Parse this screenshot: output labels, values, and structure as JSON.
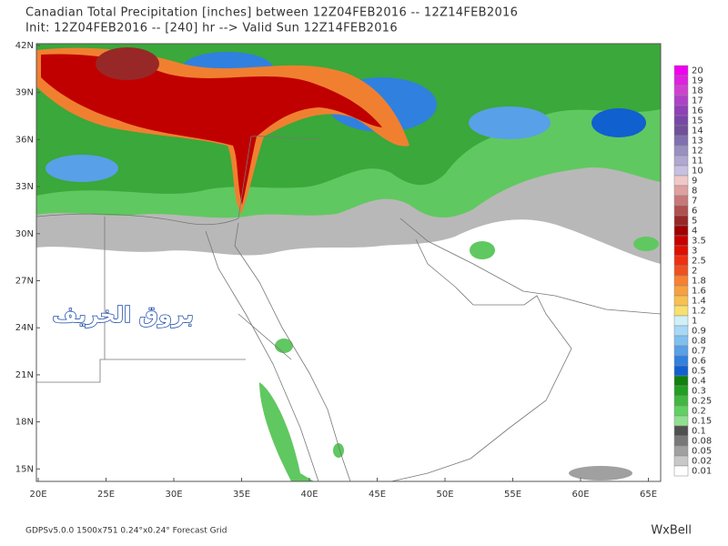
{
  "header": {
    "line1": "Canadian Total Precipitation [inches] between 12Z04FEB2016 -- 12Z14FEB2016",
    "line2": "Init: 12Z04FEB2016 -- [240] hr --> Valid Sun 12Z14FEB2016"
  },
  "map": {
    "lat_labels": [
      "42N",
      "39N",
      "36N",
      "33N",
      "30N",
      "27N",
      "24N",
      "21N",
      "18N",
      "15N"
    ],
    "lon_labels": [
      "20E",
      "25E",
      "30E",
      "35E",
      "40E",
      "45E",
      "50E",
      "55E",
      "60E",
      "65E"
    ],
    "watermark": "بروق الخريف"
  },
  "colorbar": [
    {
      "label": "20",
      "color": "#f000f0"
    },
    {
      "label": "19",
      "color": "#e020e0"
    },
    {
      "label": "18",
      "color": "#d040d0"
    },
    {
      "label": "17",
      "color": "#b040c8"
    },
    {
      "label": "16",
      "color": "#9040b8"
    },
    {
      "label": "15",
      "color": "#7848a8"
    },
    {
      "label": "14",
      "color": "#705098"
    },
    {
      "label": "13",
      "color": "#8070b0"
    },
    {
      "label": "12",
      "color": "#9890c0"
    },
    {
      "label": "11",
      "color": "#b0a8d0"
    },
    {
      "label": "10",
      "color": "#c8c0e0"
    },
    {
      "label": "9",
      "color": "#f0c8c8"
    },
    {
      "label": "8",
      "color": "#e0a0a0"
    },
    {
      "label": "7",
      "color": "#c87878"
    },
    {
      "label": "6",
      "color": "#b05050"
    },
    {
      "label": "5",
      "color": "#982828"
    },
    {
      "label": "4",
      "color": "#a00000"
    },
    {
      "label": "3.5",
      "color": "#c80000"
    },
    {
      "label": "3",
      "color": "#e01000"
    },
    {
      "label": "2.5",
      "color": "#f03010"
    },
    {
      "label": "2",
      "color": "#f05020"
    },
    {
      "label": "1.8",
      "color": "#f88030"
    },
    {
      "label": "1.6",
      "color": "#f8a040"
    },
    {
      "label": "1.4",
      "color": "#f8c050"
    },
    {
      "label": "1.2",
      "color": "#f8e070"
    },
    {
      "label": "1",
      "color": "#d0f0f8"
    },
    {
      "label": "0.9",
      "color": "#a8d8f8"
    },
    {
      "label": "0.8",
      "color": "#80c0f0"
    },
    {
      "label": "0.7",
      "color": "#58a0e8"
    },
    {
      "label": "0.6",
      "color": "#3080e0"
    },
    {
      "label": "0.5",
      "color": "#1060d0"
    },
    {
      "label": "0.4",
      "color": "#108010"
    },
    {
      "label": "0.3",
      "color": "#20a020"
    },
    {
      "label": "0.25",
      "color": "#40b840"
    },
    {
      "label": "0.2",
      "color": "#60d060"
    },
    {
      "label": "0.15",
      "color": "#90e090"
    },
    {
      "label": "0.1",
      "color": "#505050"
    },
    {
      "label": "0.08",
      "color": "#787878"
    },
    {
      "label": "0.05",
      "color": "#a0a0a0"
    },
    {
      "label": "0.02",
      "color": "#c8c8c8"
    },
    {
      "label": "0.01",
      "color": "#ffffff"
    }
  ],
  "footer": {
    "left": "GDPSv5.0.0 1500x751 0.24°x0.24° Forecast Grid",
    "right": "WxBell"
  }
}
